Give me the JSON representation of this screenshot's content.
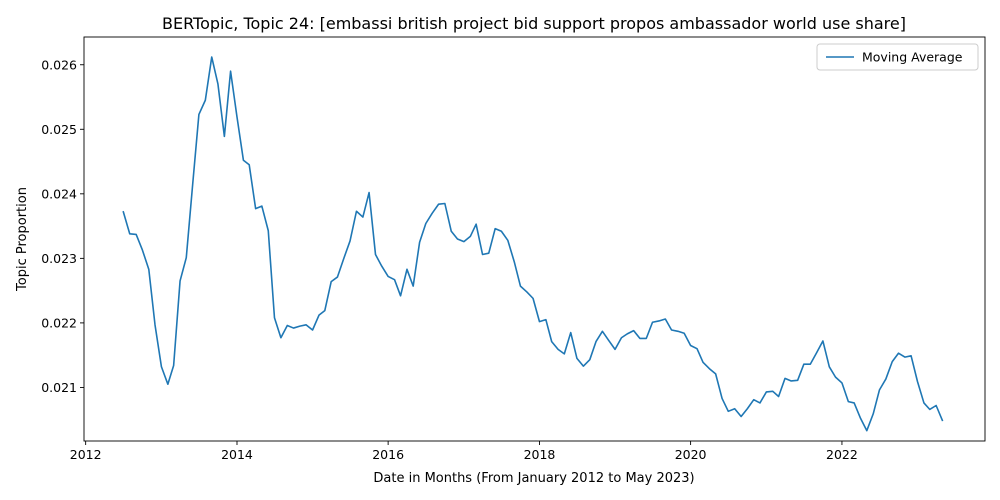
{
  "chart_data": {
    "type": "line",
    "title": "BERTopic, Topic 24: [embassi british project bid support propos ambassador world use share]",
    "xlabel": "Date in Months (From January 2012 to May 2023)",
    "ylabel": "Topic Proportion",
    "xlim": [
      "2011-12-24",
      "2023-11-23"
    ],
    "ylim": [
      0.02017,
      0.02643
    ],
    "grid": false,
    "legend_position": "top-right",
    "x_ticks": [
      {
        "label": "2012",
        "value": "2012-01-01"
      },
      {
        "label": "2014",
        "value": "2014-01-01"
      },
      {
        "label": "2016",
        "value": "2016-01-01"
      },
      {
        "label": "2018",
        "value": "2018-01-01"
      },
      {
        "label": "2020",
        "value": "2020-01-01"
      },
      {
        "label": "2022",
        "value": "2022-01-01"
      }
    ],
    "y_ticks": [
      {
        "label": "0.021",
        "value": 0.021
      },
      {
        "label": "0.022",
        "value": 0.022
      },
      {
        "label": "0.023",
        "value": 0.023
      },
      {
        "label": "0.024",
        "value": 0.024
      },
      {
        "label": "0.025",
        "value": 0.025
      },
      {
        "label": "0.026",
        "value": 0.026
      }
    ],
    "series": [
      {
        "name": "Moving Average",
        "color": "#1f77b4",
        "x": [
          "2012-07",
          "2012-08",
          "2012-09",
          "2012-10",
          "2012-11",
          "2012-12",
          "2013-01",
          "2013-02",
          "2013-03",
          "2013-04",
          "2013-05",
          "2013-06",
          "2013-07",
          "2013-08",
          "2013-09",
          "2013-10",
          "2013-11",
          "2013-12",
          "2014-01",
          "2014-02",
          "2014-03",
          "2014-04",
          "2014-05",
          "2014-06",
          "2014-07",
          "2014-08",
          "2014-09",
          "2014-10",
          "2014-11",
          "2014-12",
          "2015-01",
          "2015-02",
          "2015-03",
          "2015-04",
          "2015-05",
          "2015-06",
          "2015-07",
          "2015-08",
          "2015-09",
          "2015-10",
          "2015-11",
          "2015-12",
          "2016-01",
          "2016-02",
          "2016-03",
          "2016-04",
          "2016-05",
          "2016-06",
          "2016-07",
          "2016-08",
          "2016-09",
          "2016-10",
          "2016-11",
          "2016-12",
          "2017-01",
          "2017-02",
          "2017-03",
          "2017-04",
          "2017-05",
          "2017-06",
          "2017-07",
          "2017-08",
          "2017-09",
          "2017-10",
          "2017-11",
          "2017-12",
          "2018-01",
          "2018-02",
          "2018-03",
          "2018-04",
          "2018-05",
          "2018-06",
          "2018-07",
          "2018-08",
          "2018-09",
          "2018-10",
          "2018-11",
          "2018-12",
          "2019-01",
          "2019-02",
          "2019-03",
          "2019-04",
          "2019-05",
          "2019-06",
          "2019-07",
          "2019-08",
          "2019-09",
          "2019-10",
          "2019-11",
          "2019-12",
          "2020-01",
          "2020-02",
          "2020-03",
          "2020-04",
          "2020-05",
          "2020-06",
          "2020-07",
          "2020-08",
          "2020-09",
          "2020-10",
          "2020-11",
          "2020-12",
          "2021-01",
          "2021-02",
          "2021-03",
          "2021-04",
          "2021-05",
          "2021-06",
          "2021-07",
          "2021-08",
          "2021-09",
          "2021-10",
          "2021-11",
          "2021-12",
          "2022-01",
          "2022-02",
          "2022-03",
          "2022-04",
          "2022-05",
          "2022-06",
          "2022-07",
          "2022-08",
          "2022-09",
          "2022-10",
          "2022-11",
          "2022-12",
          "2023-01",
          "2023-02",
          "2023-03",
          "2023-04",
          "2023-05"
        ],
        "values": [
          0.02372,
          0.02338,
          0.02337,
          0.02313,
          0.02283,
          0.02197,
          0.02132,
          0.02105,
          0.02134,
          0.02265,
          0.02301,
          0.02415,
          0.02523,
          0.02545,
          0.02612,
          0.0257,
          0.02489,
          0.0259,
          0.02519,
          0.02452,
          0.02445,
          0.02377,
          0.02381,
          0.02343,
          0.02208,
          0.02177,
          0.02196,
          0.02192,
          0.02195,
          0.02197,
          0.02189,
          0.02212,
          0.02219,
          0.02264,
          0.02271,
          0.023,
          0.02327,
          0.02373,
          0.02364,
          0.02402,
          0.02306,
          0.02288,
          0.02272,
          0.02267,
          0.02242,
          0.02283,
          0.02257,
          0.02325,
          0.02354,
          0.0237,
          0.02384,
          0.02385,
          0.02342,
          0.0233,
          0.02326,
          0.02334,
          0.02353,
          0.02306,
          0.02308,
          0.02346,
          0.02342,
          0.02328,
          0.02295,
          0.02257,
          0.02248,
          0.02238,
          0.02202,
          0.02205,
          0.02171,
          0.02159,
          0.02152,
          0.02185,
          0.02145,
          0.02133,
          0.02143,
          0.02171,
          0.02187,
          0.02173,
          0.02159,
          0.02177,
          0.02183,
          0.02188,
          0.02176,
          0.02176,
          0.02201,
          0.02203,
          0.02206,
          0.02189,
          0.02187,
          0.02184,
          0.02165,
          0.0216,
          0.02139,
          0.02129,
          0.02121,
          0.02083,
          0.02063,
          0.02067,
          0.02055,
          0.02067,
          0.02081,
          0.02076,
          0.02093,
          0.02094,
          0.02086,
          0.02114,
          0.0211,
          0.02111,
          0.02136,
          0.02136,
          0.02154,
          0.02172,
          0.02132,
          0.02116,
          0.02107,
          0.02078,
          0.02076,
          0.02052,
          0.02033,
          0.02059,
          0.02096,
          0.02113,
          0.0214,
          0.02153,
          0.02147,
          0.02149,
          0.02109,
          0.02076,
          0.02066,
          0.02072,
          0.02049
        ]
      }
    ]
  }
}
